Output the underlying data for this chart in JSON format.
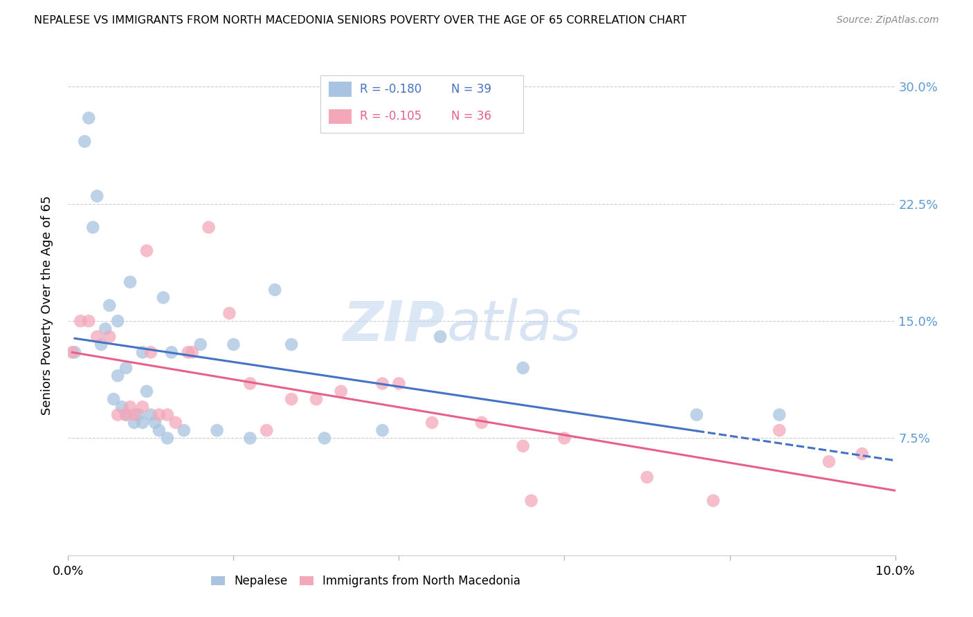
{
  "title": "NEPALESE VS IMMIGRANTS FROM NORTH MACEDONIA SENIORS POVERTY OVER THE AGE OF 65 CORRELATION CHART",
  "source": "Source: ZipAtlas.com",
  "ylabel": "Seniors Poverty Over the Age of 65",
  "xlim": [
    0.0,
    0.1
  ],
  "ylim": [
    0.0,
    0.32
  ],
  "yticks": [
    0.075,
    0.15,
    0.225,
    0.3
  ],
  "ytick_labels": [
    "7.5%",
    "15.0%",
    "22.5%",
    "30.0%"
  ],
  "xticks": [
    0.0,
    0.02,
    0.04,
    0.06,
    0.08,
    0.1
  ],
  "xtick_labels": [
    "0.0%",
    "",
    "",
    "",
    "",
    "10.0%"
  ],
  "nepalese_color": "#a8c4e0",
  "macedonia_color": "#f4a7b9",
  "trend_blue": "#4472c4",
  "trend_pink": "#e8608a",
  "legend_R_nepalese": "R = -0.180",
  "legend_N_nepalese": "N = 39",
  "legend_R_macedonia": "R = -0.105",
  "legend_N_macedonia": "N = 36",
  "nepalese_x": [
    0.0008,
    0.002,
    0.0025,
    0.003,
    0.0035,
    0.004,
    0.0045,
    0.005,
    0.0055,
    0.006,
    0.006,
    0.0065,
    0.007,
    0.007,
    0.0075,
    0.008,
    0.0085,
    0.009,
    0.009,
    0.0095,
    0.01,
    0.0105,
    0.011,
    0.0115,
    0.012,
    0.0125,
    0.014,
    0.016,
    0.018,
    0.02,
    0.022,
    0.025,
    0.027,
    0.031,
    0.038,
    0.045,
    0.055,
    0.076,
    0.086
  ],
  "nepalese_y": [
    0.13,
    0.265,
    0.28,
    0.21,
    0.23,
    0.135,
    0.145,
    0.16,
    0.1,
    0.15,
    0.115,
    0.095,
    0.09,
    0.12,
    0.175,
    0.085,
    0.09,
    0.13,
    0.085,
    0.105,
    0.09,
    0.085,
    0.08,
    0.165,
    0.075,
    0.13,
    0.08,
    0.135,
    0.08,
    0.135,
    0.075,
    0.17,
    0.135,
    0.075,
    0.08,
    0.14,
    0.12,
    0.09,
    0.09
  ],
  "macedonia_x": [
    0.0005,
    0.0015,
    0.0025,
    0.0035,
    0.005,
    0.006,
    0.007,
    0.0075,
    0.008,
    0.009,
    0.0095,
    0.01,
    0.011,
    0.012,
    0.013,
    0.0145,
    0.015,
    0.017,
    0.0195,
    0.022,
    0.024,
    0.027,
    0.03,
    0.033,
    0.038,
    0.04,
    0.044,
    0.05,
    0.055,
    0.056,
    0.06,
    0.07,
    0.078,
    0.086,
    0.092,
    0.096
  ],
  "macedonia_y": [
    0.13,
    0.15,
    0.15,
    0.14,
    0.14,
    0.09,
    0.09,
    0.095,
    0.09,
    0.095,
    0.195,
    0.13,
    0.09,
    0.09,
    0.085,
    0.13,
    0.13,
    0.21,
    0.155,
    0.11,
    0.08,
    0.1,
    0.1,
    0.105,
    0.11,
    0.11,
    0.085,
    0.085,
    0.07,
    0.035,
    0.075,
    0.05,
    0.035,
    0.08,
    0.06,
    0.065
  ],
  "watermark_zip": "ZIP",
  "watermark_atlas": "atlas",
  "right_axis_color": "#5b9bd5",
  "background_color": "#ffffff"
}
